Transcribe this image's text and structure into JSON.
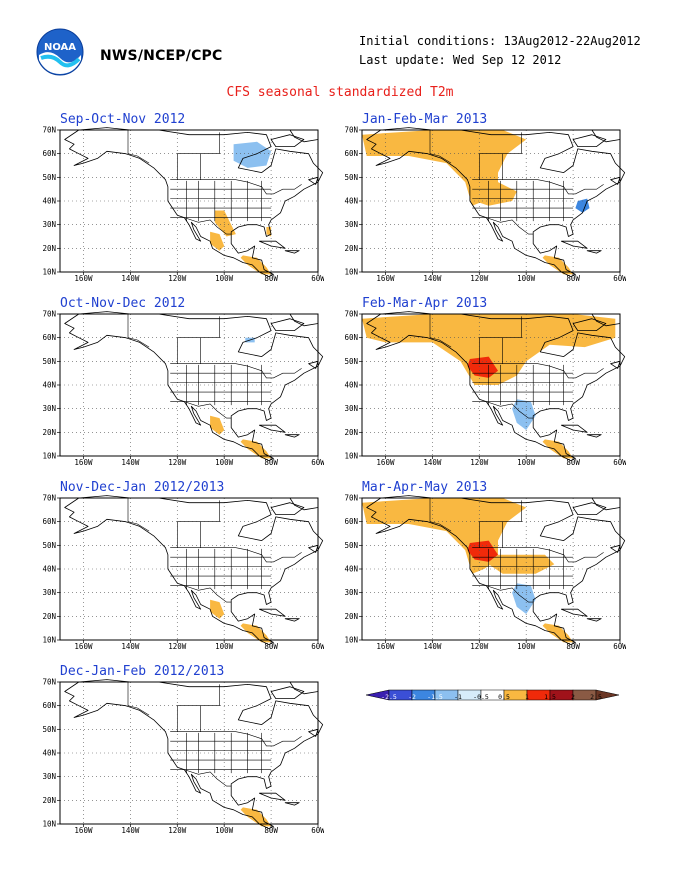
{
  "header": {
    "agency": "NWS/NCEP/CPC",
    "initial_conditions": "Initial conditions: 13Aug2012-22Aug2012",
    "last_update": "Last update: Wed Sep 12 2012",
    "product_title": "CFS seasonal standardized T2m"
  },
  "logo": {
    "icon": "noaa-logo-icon",
    "text": "NOAA"
  },
  "axes": {
    "lat_labels": [
      "70N",
      "60N",
      "50N",
      "40N",
      "30N",
      "20N",
      "10N"
    ],
    "lon_labels": [
      "160W",
      "140W",
      "120W",
      "100W",
      "80W",
      "60W"
    ]
  },
  "panels": [
    {
      "title": "Sep-Oct-Nov 2012",
      "anomalies": [
        "cold-hudson-bay",
        "warm-sw-mexico-coast",
        "warm-texas-gulf",
        "warm-florida",
        "warm-central-america"
      ]
    },
    {
      "title": "Jan-Feb-Mar 2013",
      "anomalies": [
        "warm-alaska-western-canada",
        "warm-pacific-northwest",
        "cold-mid-atlantic",
        "warm-central-america"
      ]
    },
    {
      "title": "Oct-Nov-Dec 2012",
      "anomalies": [
        "cold-hudson-bay-small",
        "warm-sw-mexico-coast",
        "warm-central-america"
      ]
    },
    {
      "title": "Feb-Mar-Apr 2013",
      "anomalies": [
        "warm-alaska-canada",
        "hot-pacific-northwest",
        "cold-mexico",
        "warm-central-america"
      ]
    },
    {
      "title": "Nov-Dec-Jan 2012/2013",
      "anomalies": [
        "warm-sw-mexico-coast",
        "warm-central-america"
      ]
    },
    {
      "title": "Mar-Apr-May 2013",
      "anomalies": [
        "warm-alaska-western-canada",
        "hot-pacific-northwest",
        "warm-northern-plains",
        "cold-mexico",
        "warm-central-america"
      ]
    },
    {
      "title": "Dec-Jan-Feb 2012/2013",
      "anomalies": [
        "warm-central-america"
      ]
    }
  ],
  "legend": {
    "labels": [
      "-2.5",
      "-2",
      "-1.5",
      "-1",
      "-0.5",
      "0.5",
      "1",
      "1.5",
      "2",
      "2.5"
    ],
    "colors": [
      "#3a1fb0",
      "#3b4fd6",
      "#3c86e0",
      "#8cc0f0",
      "#d6ecfa",
      "#ffffff",
      "#f9b841",
      "#f02a0a",
      "#a0121a",
      "#8a5a44",
      "#6b3624"
    ]
  },
  "colors": {
    "title_red": "#e8201b",
    "panel_title_blue": "#2040d0",
    "warm": "#f9b841",
    "hot": "#f02a0a",
    "cold": "#8cc0f0",
    "cold_strong": "#3c86e0"
  }
}
